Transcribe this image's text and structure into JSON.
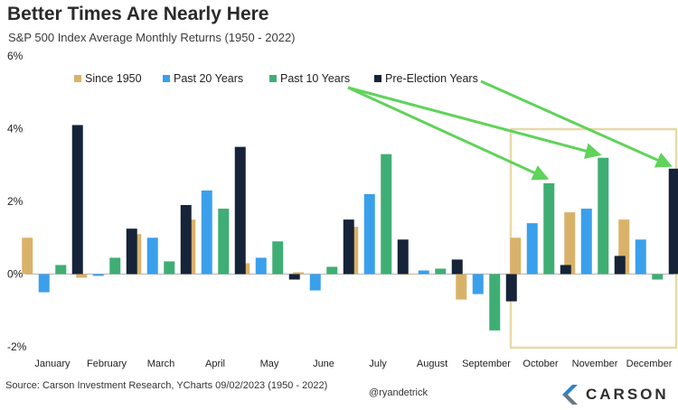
{
  "colors": {
    "since_1950": "#d9b26a",
    "past_20": "#3aa0ec",
    "past_10": "#3fae74",
    "pre_election": "#162338",
    "highlight_box": "#e8d9aa",
    "arrow": "#5fd35a",
    "zero_line": "#b5b5b5",
    "logo_accent": "#2f83c8"
  },
  "header": {
    "title": "Better Times Are Nearly Here",
    "subtitle": "S&P 500 Index Average Monthly Returns (1950 - 2022)"
  },
  "footer": {
    "source": "Source: Carson Investment Research, YCharts 09/02/2023 (1950 - 2022)",
    "handle": "@ryandetrick",
    "logo_text": "CARSON",
    "logo_icon": "carson-logo-icon"
  },
  "chart_data": {
    "type": "bar",
    "categories": [
      "January",
      "February",
      "March",
      "April",
      "May",
      "June",
      "July",
      "August",
      "September",
      "October",
      "November",
      "December"
    ],
    "series": [
      {
        "name": "Since 1950",
        "values": [
          1.0,
          -0.1,
          1.1,
          1.5,
          0.3,
          0.05,
          1.3,
          0.0,
          -0.7,
          1.0,
          1.7,
          1.5
        ]
      },
      {
        "name": "Past 20 Years",
        "values": [
          -0.5,
          -0.05,
          1.0,
          2.3,
          0.45,
          -0.45,
          2.2,
          0.1,
          -0.55,
          1.4,
          1.8,
          0.95
        ]
      },
      {
        "name": "Past 10 Years",
        "values": [
          0.25,
          0.45,
          0.35,
          1.8,
          0.9,
          0.2,
          3.3,
          0.15,
          -1.55,
          2.5,
          3.2,
          -0.15
        ]
      },
      {
        "name": "Pre-Election Years",
        "values": [
          4.1,
          1.25,
          1.9,
          3.5,
          -0.15,
          1.5,
          0.95,
          0.4,
          -0.75,
          0.25,
          0.5,
          2.9
        ]
      }
    ],
    "ylim": [
      -2,
      6
    ],
    "yticks": [
      "-2%",
      "0%",
      "2%",
      "4%",
      "6%"
    ],
    "legend_position": "top",
    "highlighted_categories": [
      "October",
      "November",
      "December"
    ]
  }
}
